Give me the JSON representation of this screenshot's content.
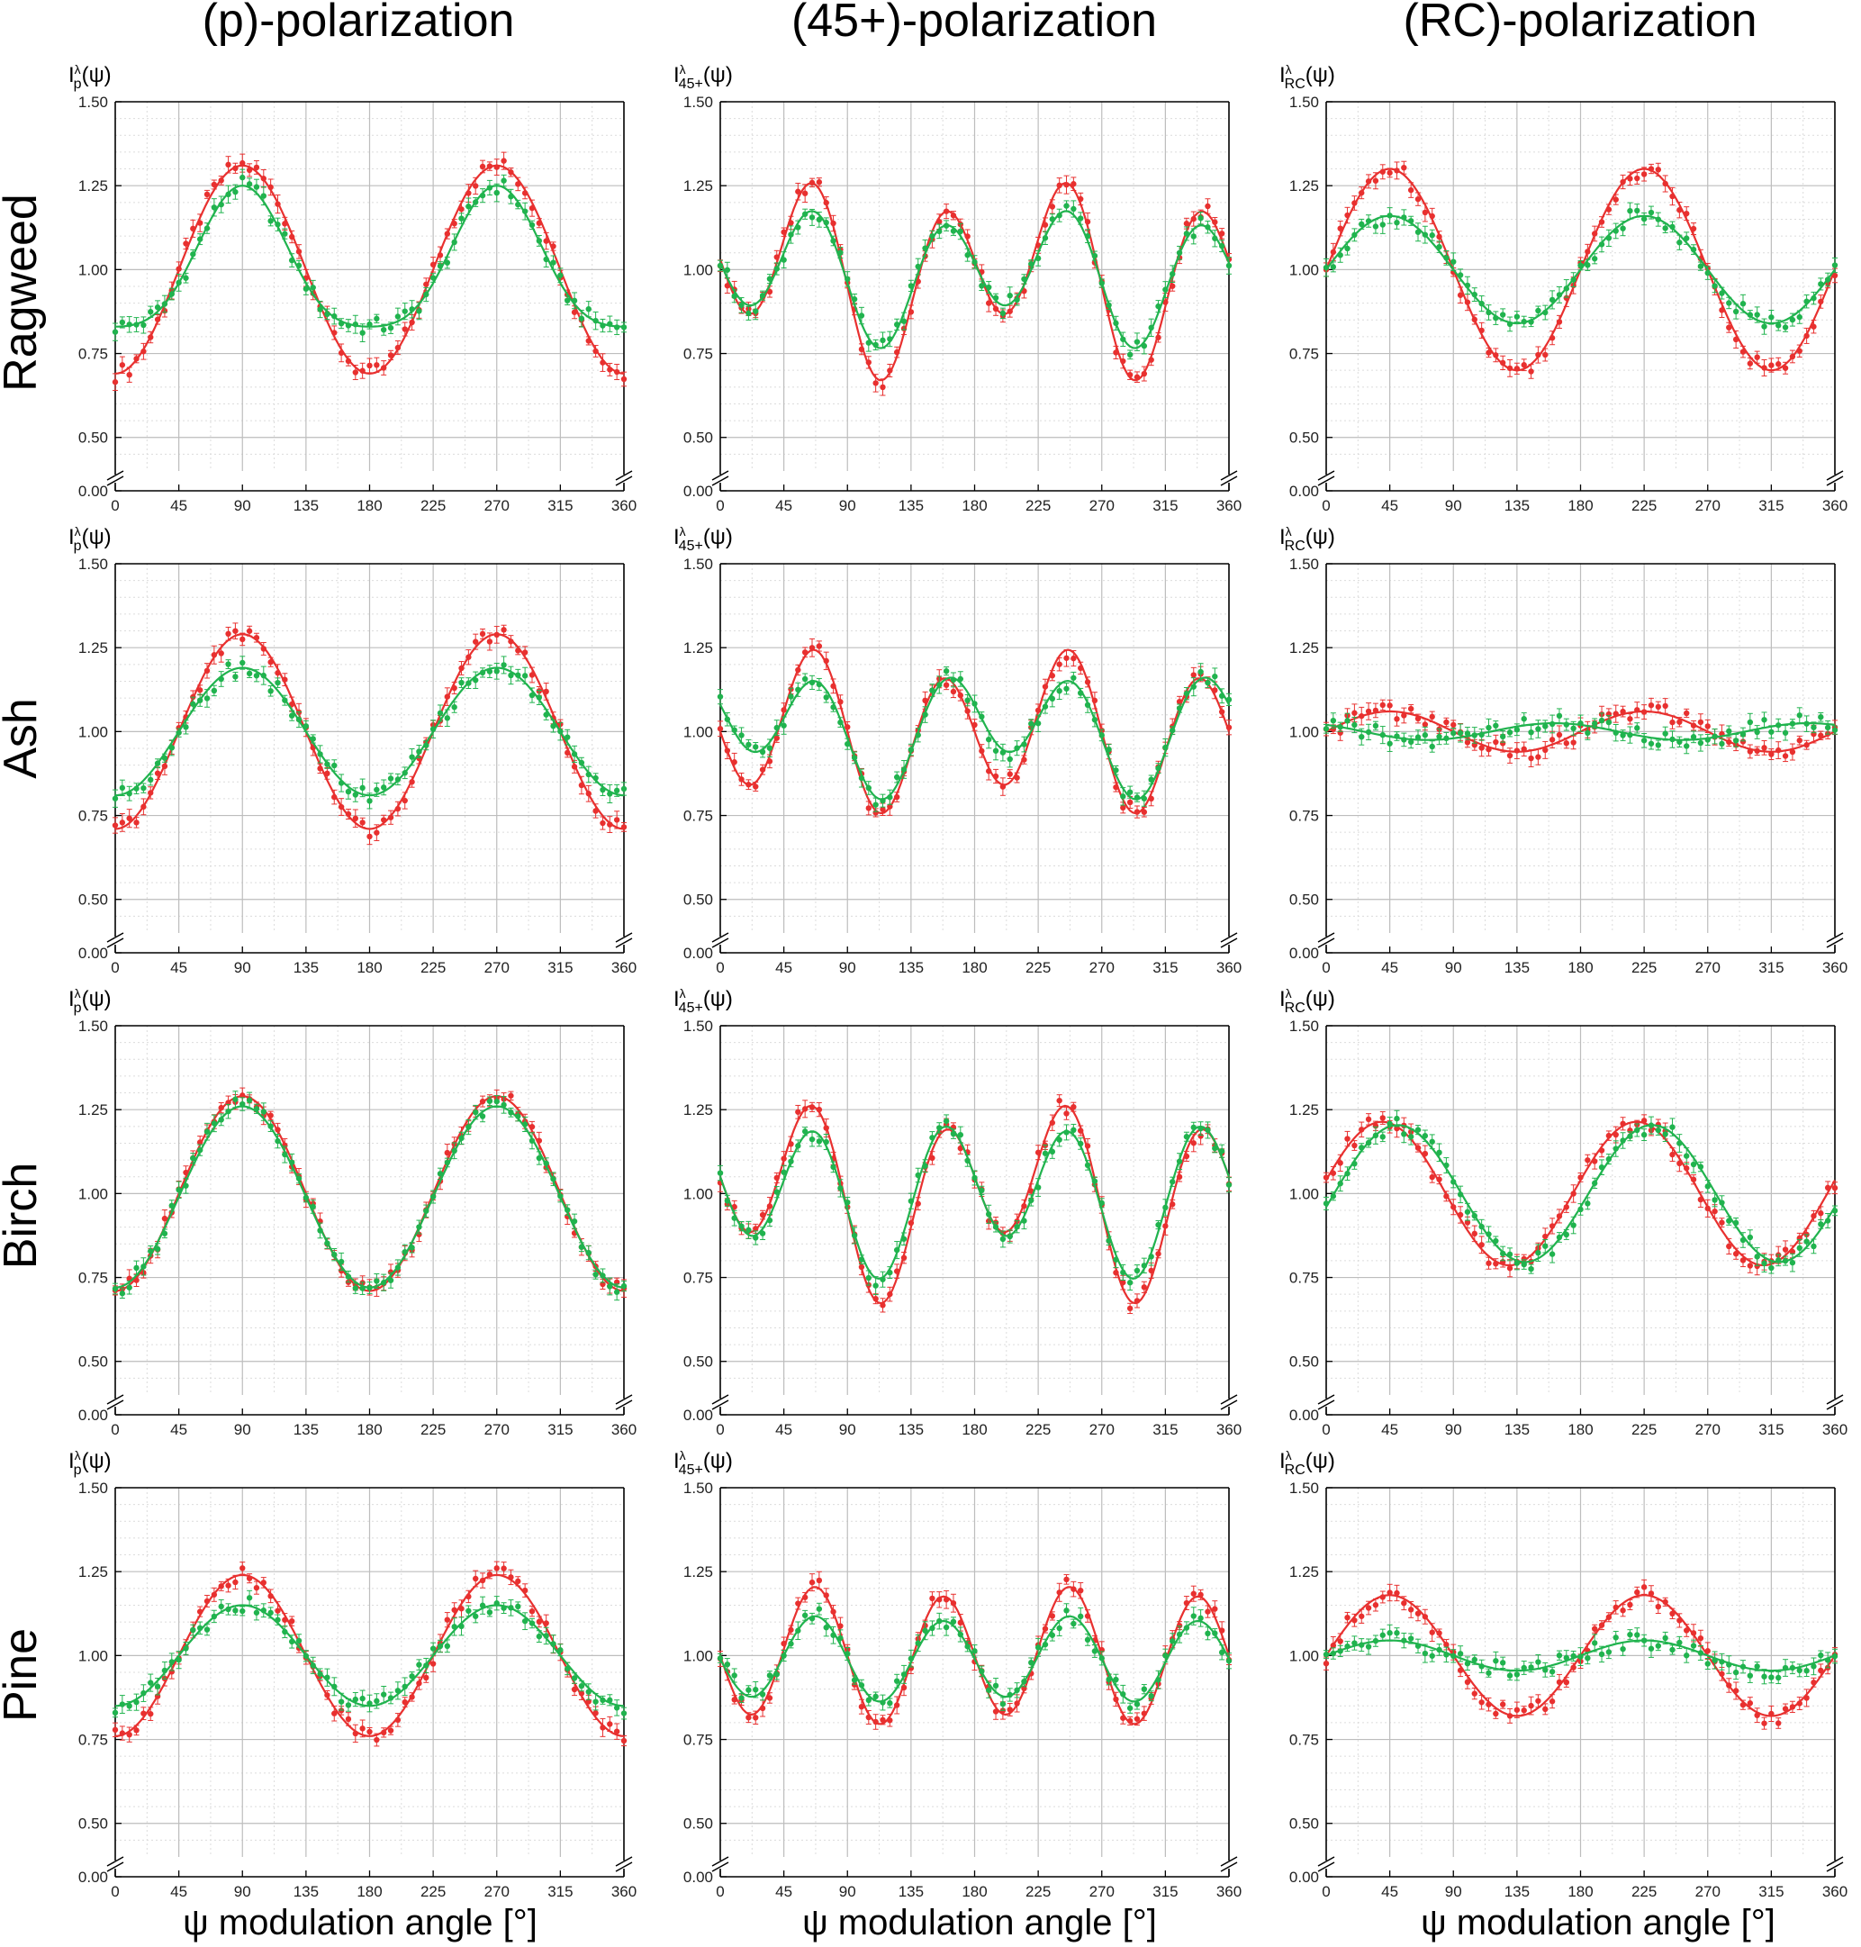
{
  "figure": {
    "column_titles": [
      "(p)-polarization",
      "(45+)-polarization",
      "(RC)-polarization"
    ],
    "row_titles": [
      "Ragweed",
      "Ash",
      "Birch",
      "Pine"
    ],
    "xlabel": "ψ modulation angle [°]",
    "y_symbols": [
      {
        "main": "I",
        "sup": "λ",
        "sub": "p",
        "arg": "(ψ)"
      },
      {
        "main": "I",
        "sup": "λ",
        "sub": "45+",
        "arg": "(ψ)"
      },
      {
        "main": "I",
        "sup": "λ",
        "sub": "RC",
        "arg": "(ψ)"
      }
    ]
  },
  "colors": {
    "red": "#e8302f",
    "green": "#20b34e",
    "grid": "#bdbdbd",
    "grid_minor": "#dcdcdc"
  },
  "chart_data": [
    {
      "type": "line",
      "row": "Ragweed",
      "column": "(p)-polarization",
      "xlim": [
        0,
        360
      ],
      "ylim_shown": [
        0.4,
        1.5
      ],
      "y_break": "0.00 to 0.40",
      "x_ticks": [
        "0",
        "45",
        "90",
        "135",
        "180",
        "225",
        "270",
        "315",
        "360"
      ],
      "y_ticks": [
        "0.00",
        "0.50",
        "0.75",
        "1.00",
        "1.25",
        "1.50"
      ],
      "grid": true,
      "series": [
        {
          "color": "red",
          "fit": {
            "offset": 1.0,
            "cos2": -0.31,
            "sin2": 0,
            "cos4": 0,
            "sin4": 0
          }
        },
        {
          "color": "green",
          "fit": {
            "offset": 1.0,
            "cos2": -0.21,
            "sin2": 0,
            "cos4": 0.04,
            "sin4": 0
          }
        }
      ]
    },
    {
      "type": "line",
      "row": "Ragweed",
      "column": "(45+)-polarization",
      "xlim": [
        0,
        360
      ],
      "ylim_shown": [
        0.4,
        1.5
      ],
      "y_break": "0.00 to 0.40",
      "x_ticks": [
        "0",
        "45",
        "90",
        "135",
        "180",
        "225",
        "270",
        "315",
        "360"
      ],
      "y_ticks": [
        "0.00",
        "0.50",
        "0.75",
        "1.00",
        "1.25",
        "1.50"
      ],
      "grid": true,
      "series": [
        {
          "color": "red",
          "fit": {
            "offset": 0.99,
            "cos2": 0.04,
            "sin2": 0.1,
            "cos4": 0,
            "sin4": -0.22
          }
        },
        {
          "color": "green",
          "fit": {
            "offset": 0.99,
            "cos2": 0.03,
            "sin2": 0.06,
            "cos4": 0,
            "sin4": -0.16
          }
        }
      ]
    },
    {
      "type": "line",
      "row": "Ragweed",
      "column": "(RC)-polarization",
      "xlim": [
        0,
        360
      ],
      "ylim_shown": [
        0.4,
        1.5
      ],
      "y_break": "0.00 to 0.40",
      "x_ticks": [
        "0",
        "45",
        "90",
        "135",
        "180",
        "225",
        "270",
        "315",
        "360"
      ],
      "y_ticks": [
        "0.00",
        "0.50",
        "0.75",
        "1.00",
        "1.25",
        "1.50"
      ],
      "grid": true,
      "series": [
        {
          "color": "red",
          "fit": {
            "offset": 1.0,
            "cos2": 0,
            "sin2": 0.3,
            "cos4": 0,
            "sin4": 0
          }
        },
        {
          "color": "green",
          "fit": {
            "offset": 1.0,
            "cos2": 0,
            "sin2": 0.16,
            "cos4": 0,
            "sin4": 0
          }
        }
      ]
    },
    {
      "type": "line",
      "row": "Ash",
      "column": "(p)-polarization",
      "xlim": [
        0,
        360
      ],
      "ylim_shown": [
        0.4,
        1.5
      ],
      "y_break": "0.00 to 0.40",
      "x_ticks": [
        "0",
        "45",
        "90",
        "135",
        "180",
        "225",
        "270",
        "315",
        "360"
      ],
      "y_ticks": [
        "0.00",
        "0.50",
        "0.75",
        "1.00",
        "1.25",
        "1.50"
      ],
      "grid": true,
      "series": [
        {
          "color": "red",
          "fit": {
            "offset": 1.0,
            "cos2": -0.29,
            "sin2": 0,
            "cos4": 0,
            "sin4": 0
          }
        },
        {
          "color": "green",
          "fit": {
            "offset": 1.0,
            "cos2": -0.19,
            "sin2": 0,
            "cos4": 0,
            "sin4": 0
          }
        }
      ]
    },
    {
      "type": "line",
      "row": "Ash",
      "column": "(45+)-polarization",
      "xlim": [
        0,
        360
      ],
      "ylim_shown": [
        0.4,
        1.5
      ],
      "y_break": "0.00 to 0.40",
      "x_ticks": [
        "0",
        "45",
        "90",
        "135",
        "180",
        "225",
        "270",
        "315",
        "360"
      ],
      "y_ticks": [
        "0.00",
        "0.50",
        "0.75",
        "1.00",
        "1.25",
        "1.50"
      ],
      "grid": true,
      "series": [
        {
          "color": "red",
          "fit": {
            "offset": 1.0,
            "cos2": 0,
            "sin2": 0.06,
            "cos4": 0,
            "sin4": -0.2
          }
        },
        {
          "color": "green",
          "fit": {
            "offset": 1.01,
            "cos2": 0.05,
            "sin2": 0.05,
            "cos4": 0.02,
            "sin4": -0.14
          }
        }
      ]
    },
    {
      "type": "line",
      "row": "Ash",
      "column": "(RC)-polarization",
      "xlim": [
        0,
        360
      ],
      "ylim_shown": [
        0.4,
        1.5
      ],
      "y_break": "0.00 to 0.40",
      "x_ticks": [
        "0",
        "45",
        "90",
        "135",
        "180",
        "225",
        "270",
        "315",
        "360"
      ],
      "y_ticks": [
        "0.00",
        "0.50",
        "0.75",
        "1.00",
        "1.25",
        "1.50"
      ],
      "grid": true,
      "series": [
        {
          "color": "red",
          "fit": {
            "offset": 1.0,
            "cos2": 0,
            "sin2": 0.06,
            "cos4": 0,
            "sin4": 0
          }
        },
        {
          "color": "green",
          "fit": {
            "offset": 1.0,
            "cos2": 0.02,
            "sin2": -0.015,
            "cos4": 0,
            "sin4": 0
          }
        }
      ]
    },
    {
      "type": "line",
      "row": "Birch",
      "column": "(p)-polarization",
      "xlim": [
        0,
        360
      ],
      "ylim_shown": [
        0.4,
        1.5
      ],
      "y_break": "0.00 to 0.40",
      "x_ticks": [
        "0",
        "45",
        "90",
        "135",
        "180",
        "225",
        "270",
        "315",
        "360"
      ],
      "y_ticks": [
        "0.00",
        "0.50",
        "0.75",
        "1.00",
        "1.25",
        "1.50"
      ],
      "grid": true,
      "series": [
        {
          "color": "red",
          "fit": {
            "offset": 1.0,
            "cos2": -0.29,
            "sin2": 0,
            "cos4": 0,
            "sin4": 0
          }
        },
        {
          "color": "green",
          "fit": {
            "offset": 0.99,
            "cos2": -0.27,
            "sin2": 0,
            "cos4": 0,
            "sin4": 0
          }
        }
      ]
    },
    {
      "type": "line",
      "row": "Birch",
      "column": "(45+)-polarization",
      "xlim": [
        0,
        360
      ],
      "ylim_shown": [
        0.4,
        1.5
      ],
      "y_break": "0.00 to 0.40",
      "x_ticks": [
        "0",
        "45",
        "90",
        "135",
        "180",
        "225",
        "270",
        "315",
        "360"
      ],
      "y_ticks": [
        "0.00",
        "0.50",
        "0.75",
        "1.00",
        "1.25",
        "1.50"
      ],
      "grid": true,
      "series": [
        {
          "color": "red",
          "fit": {
            "offset": 1.0,
            "cos2": 0.05,
            "sin2": 0.1,
            "cos4": 0,
            "sin4": -0.22
          }
        },
        {
          "color": "green",
          "fit": {
            "offset": 1.0,
            "cos2": 0.05,
            "sin2": 0.04,
            "cos4": 0,
            "sin4": -0.19
          }
        }
      ]
    },
    {
      "type": "line",
      "row": "Birch",
      "column": "(RC)-polarization",
      "xlim": [
        0,
        360
      ],
      "ylim_shown": [
        0.4,
        1.5
      ],
      "y_break": "0.00 to 0.40",
      "x_ticks": [
        "0",
        "45",
        "90",
        "135",
        "180",
        "225",
        "270",
        "315",
        "360"
      ],
      "y_ticks": [
        "0.00",
        "0.50",
        "0.75",
        "1.00",
        "1.25",
        "1.50"
      ],
      "grid": true,
      "series": [
        {
          "color": "red",
          "fit": {
            "offset": 1.0,
            "cos2": 0.04,
            "sin2": 0.21,
            "cos4": 0,
            "sin4": 0
          }
        },
        {
          "color": "green",
          "fit": {
            "offset": 1.0,
            "cos2": -0.04,
            "sin2": 0.2,
            "cos4": 0,
            "sin4": 0
          }
        }
      ]
    },
    {
      "type": "line",
      "row": "Pine",
      "column": "(p)-polarization",
      "xlim": [
        0,
        360
      ],
      "ylim_shown": [
        0.4,
        1.5
      ],
      "y_break": "0.00 to 0.40",
      "x_ticks": [
        "0",
        "45",
        "90",
        "135",
        "180",
        "225",
        "270",
        "315",
        "360"
      ],
      "y_ticks": [
        "0.00",
        "0.50",
        "0.75",
        "1.00",
        "1.25",
        "1.50"
      ],
      "grid": true,
      "series": [
        {
          "color": "red",
          "fit": {
            "offset": 1.0,
            "cos2": -0.24,
            "sin2": 0,
            "cos4": 0,
            "sin4": 0
          }
        },
        {
          "color": "green",
          "fit": {
            "offset": 1.0,
            "cos2": -0.15,
            "sin2": 0,
            "cos4": 0,
            "sin4": 0
          }
        }
      ]
    },
    {
      "type": "line",
      "row": "Pine",
      "column": "(45+)-polarization",
      "xlim": [
        0,
        360
      ],
      "ylim_shown": [
        0.4,
        1.5
      ],
      "y_break": "0.00 to 0.40",
      "x_ticks": [
        "0",
        "45",
        "90",
        "135",
        "180",
        "225",
        "270",
        "315",
        "360"
      ],
      "y_ticks": [
        "0.00",
        "0.50",
        "0.75",
        "1.00",
        "1.25",
        "1.50"
      ],
      "grid": true,
      "series": [
        {
          "color": "red",
          "fit": {
            "offset": 1.0,
            "cos2": 0,
            "sin2": 0.02,
            "cos4": 0,
            "sin4": -0.19
          }
        },
        {
          "color": "green",
          "fit": {
            "offset": 0.99,
            "cos2": 0,
            "sin2": 0.01,
            "cos4": 0,
            "sin4": -0.12
          }
        }
      ]
    },
    {
      "type": "line",
      "row": "Pine",
      "column": "(RC)-polarization",
      "xlim": [
        0,
        360
      ],
      "ylim_shown": [
        0.4,
        1.5
      ],
      "y_break": "0.00 to 0.40",
      "x_ticks": [
        "0",
        "45",
        "90",
        "135",
        "180",
        "225",
        "270",
        "315",
        "360"
      ],
      "y_ticks": [
        "0.00",
        "0.50",
        "0.75",
        "1.00",
        "1.25",
        "1.50"
      ],
      "grid": true,
      "series": [
        {
          "color": "red",
          "fit": {
            "offset": 1.0,
            "cos2": 0,
            "sin2": 0.18,
            "cos4": 0,
            "sin4": 0
          }
        },
        {
          "color": "green",
          "fit": {
            "offset": 1.0,
            "cos2": 0,
            "sin2": 0.045,
            "cos4": 0,
            "sin4": 0
          }
        }
      ]
    }
  ]
}
